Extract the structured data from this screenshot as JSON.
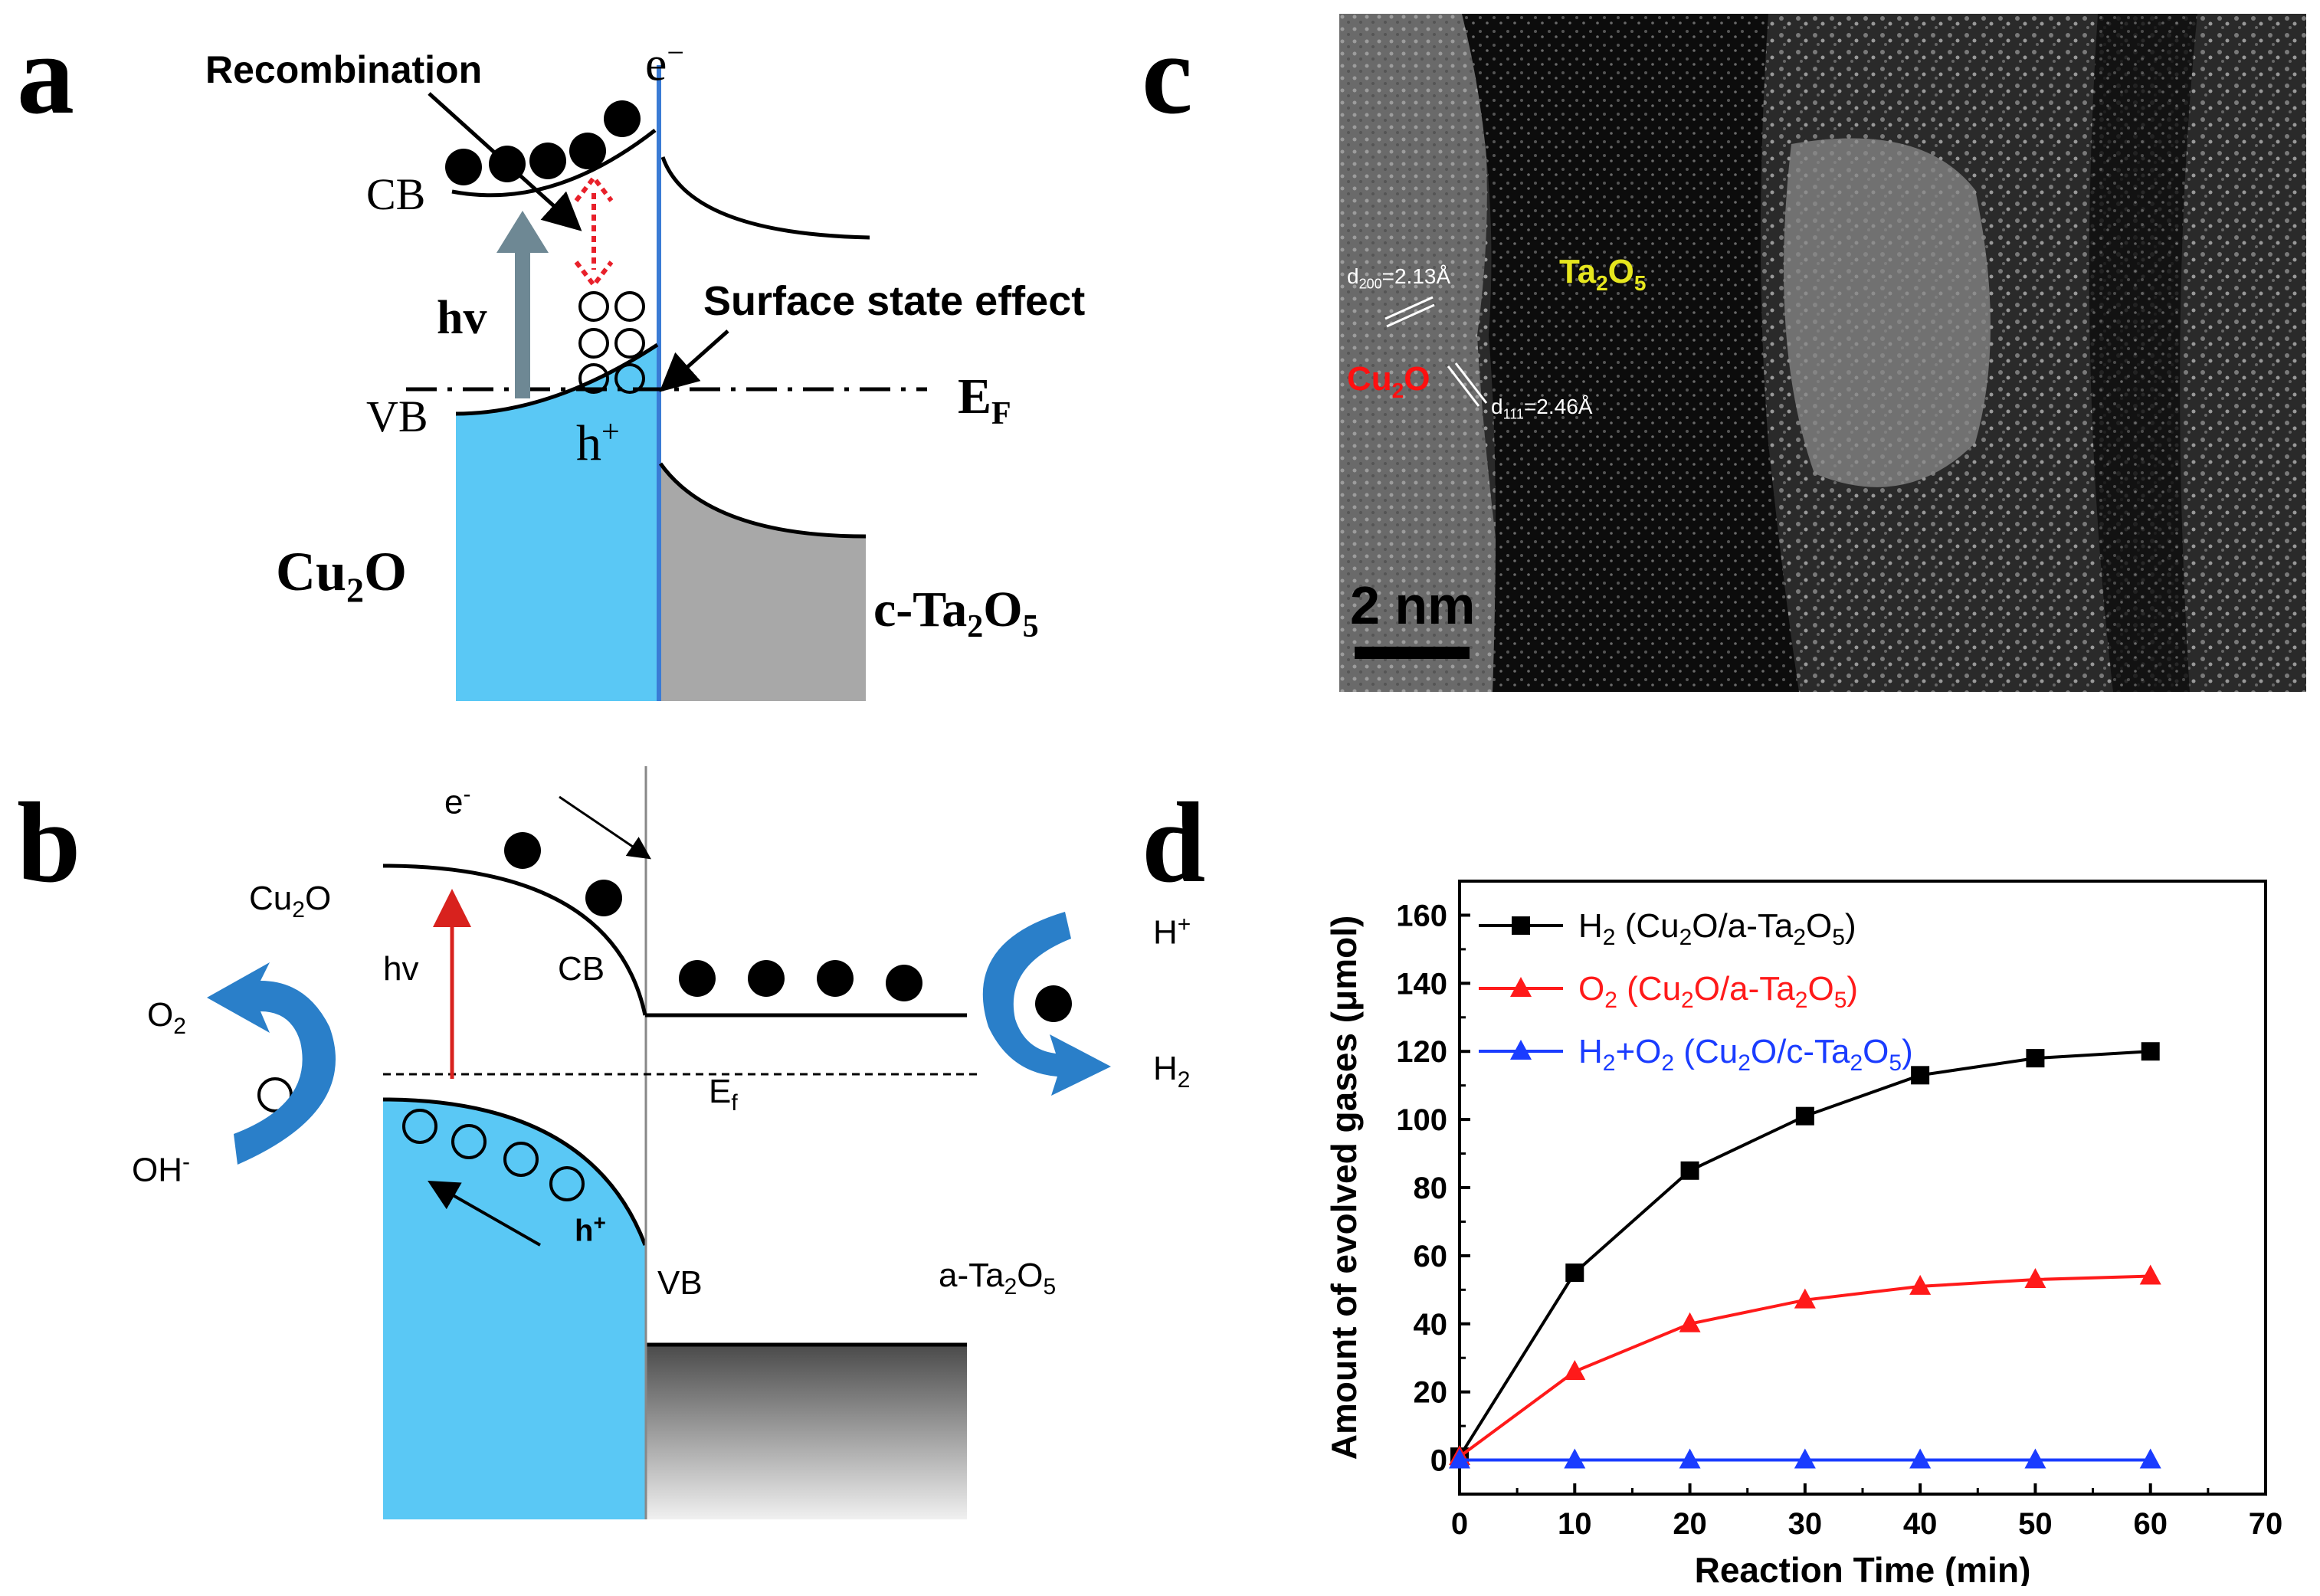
{
  "panels": {
    "a": {
      "letter": "a",
      "recombination": "Recombination",
      "electron": "e",
      "electron_sup": "−",
      "cb": "CB",
      "vb": "VB",
      "hv": "hv",
      "hole": "h",
      "hole_sup": "+",
      "surface_state": "Surface state effect",
      "ef": "E",
      "ef_sub": "F",
      "left_material": "Cu",
      "left_material_sub": "2",
      "left_material_end": "O",
      "right_material": "c-Ta",
      "right_material_sub1": "2",
      "right_material_mid": "O",
      "right_material_sub2": "5",
      "colors": {
        "cu2o": "#5ac8f5",
        "ta2o5": "#a8a8a8",
        "recombination_arrow": "#e8202a",
        "hv_arrow": "#6e8894"
      }
    },
    "b": {
      "letter": "b",
      "electron": "e",
      "electron_sup": "-",
      "cu2o": "Cu",
      "cu2o_sub": "2",
      "cu2o_end": "O",
      "hv": "hv",
      "cb": "CB",
      "vb": "VB",
      "ef": "E",
      "ef_sub": "f",
      "hole": "h",
      "hole_sup": "+",
      "o2": "O",
      "o2_sub": "2",
      "oh": "OH",
      "oh_sup": "-",
      "h_plus": "H",
      "h_plus_sup": "+",
      "h2": "H",
      "h2_sub": "2",
      "right_material": "a-Ta",
      "right_material_sub1": "2",
      "right_material_mid": "O",
      "right_material_sub2": "5",
      "colors": {
        "cu2o": "#5ac8f5",
        "curve_arrow": "#2a7fc9",
        "hv_arrow": "#d8221e"
      }
    },
    "c": {
      "letter": "c",
      "d200": "d",
      "d200_sub": "200",
      "d200_val": "=2.13Å",
      "d111": "d",
      "d111_sub": "111",
      "d111_val": "=2.46Å",
      "ta2o5": "Ta",
      "ta2o5_sub1": "2",
      "ta2o5_mid": "O",
      "ta2o5_sub2": "5",
      "cu2o": "Cu",
      "cu2o_sub": "2",
      "cu2o_end": "O",
      "scale_bar": "2 nm",
      "colors": {
        "ta2o5_label": "#e6e61e",
        "cu2o_label": "#ff1010"
      }
    },
    "d": {
      "letter": "d"
    }
  },
  "chart_data": {
    "type": "line",
    "xlabel": "Reaction Time (min)",
    "ylabel": "Amount of evolved gases (μmol)",
    "xlim": [
      0,
      70
    ],
    "ylim": [
      -10,
      170
    ],
    "xticks": [
      0,
      10,
      20,
      30,
      40,
      50,
      60,
      70
    ],
    "yticks": [
      0,
      20,
      40,
      60,
      80,
      100,
      120,
      140,
      160
    ],
    "legend_position": "top-left",
    "series": [
      {
        "name": "H2 (Cu2O/a-Ta2O5)",
        "label_parts": [
          "H",
          "2",
          " (Cu",
          "2",
          "O/a-Ta",
          "2",
          "O",
          "5",
          ")"
        ],
        "color": "#000000",
        "marker": "square",
        "x": [
          0,
          10,
          20,
          30,
          40,
          50,
          60
        ],
        "y": [
          1,
          55,
          85,
          101,
          113,
          118,
          120
        ]
      },
      {
        "name": "O2 (Cu2O/a-Ta2O5)",
        "label_parts": [
          "O",
          "2",
          " (Cu",
          "2",
          "O/a-Ta",
          "2",
          "O",
          "5",
          ")"
        ],
        "color": "#ff1a1a",
        "marker": "triangle",
        "x": [
          0,
          10,
          20,
          30,
          40,
          50,
          60
        ],
        "y": [
          1,
          26,
          40,
          47,
          51,
          53,
          54
        ]
      },
      {
        "name": "H2+O2 (Cu2O/c-Ta2O5)",
        "label_parts": [
          "H",
          "2",
          "+O",
          "2",
          " (Cu",
          "2",
          "O/c-Ta",
          "2",
          "O",
          "5",
          ")"
        ],
        "color": "#1a3cff",
        "marker": "triangle",
        "x": [
          0,
          10,
          20,
          30,
          40,
          50,
          60
        ],
        "y": [
          0,
          0,
          0,
          0,
          0,
          0,
          0
        ]
      }
    ]
  }
}
